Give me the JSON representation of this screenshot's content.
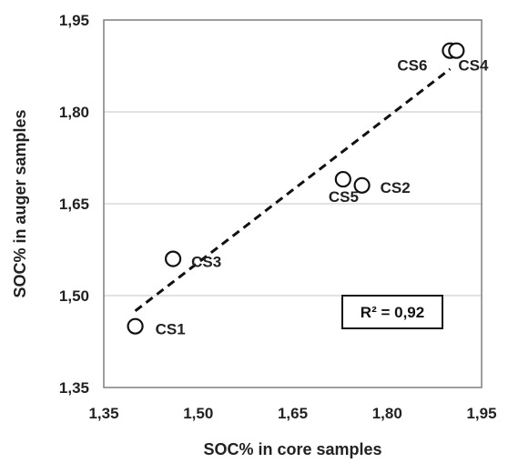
{
  "chart_data": {
    "type": "scatter",
    "title": "",
    "xlabel": "SOC% in core samples",
    "ylabel": "SOC% in auger samples",
    "xlim": [
      1.35,
      1.95
    ],
    "ylim": [
      1.35,
      1.95
    ],
    "x_ticks": [
      "1,35",
      "1,50",
      "1,65",
      "1,80",
      "1,95"
    ],
    "y_ticks": [
      "1,35",
      "1,50",
      "1,65",
      "1,80",
      "1,95"
    ],
    "x_tick_values": [
      1.35,
      1.5,
      1.65,
      1.8,
      1.95
    ],
    "y_tick_values": [
      1.35,
      1.5,
      1.65,
      1.8,
      1.95
    ],
    "grid": "horizontal",
    "points": [
      {
        "label": "CS1",
        "x": 1.4,
        "y": 1.45
      },
      {
        "label": "CS3",
        "x": 1.46,
        "y": 1.56
      },
      {
        "label": "CS5",
        "x": 1.73,
        "y": 1.69
      },
      {
        "label": "CS2",
        "x": 1.76,
        "y": 1.68
      },
      {
        "label": "CS6",
        "x": 1.9,
        "y": 1.9
      },
      {
        "label": "CS4",
        "x": 1.91,
        "y": 1.9
      }
    ],
    "trendline": {
      "style": "dashed",
      "start": {
        "x": 1.4,
        "y": 1.475
      },
      "end": {
        "x": 1.9,
        "y": 1.87
      }
    },
    "annotation": "R² = 0,92",
    "colors": {
      "marker_stroke": "#111111",
      "marker_fill": "#ffffff",
      "trendline": "#111111",
      "grid": "#d9d9d9",
      "frame": "#7f7f7f"
    }
  }
}
